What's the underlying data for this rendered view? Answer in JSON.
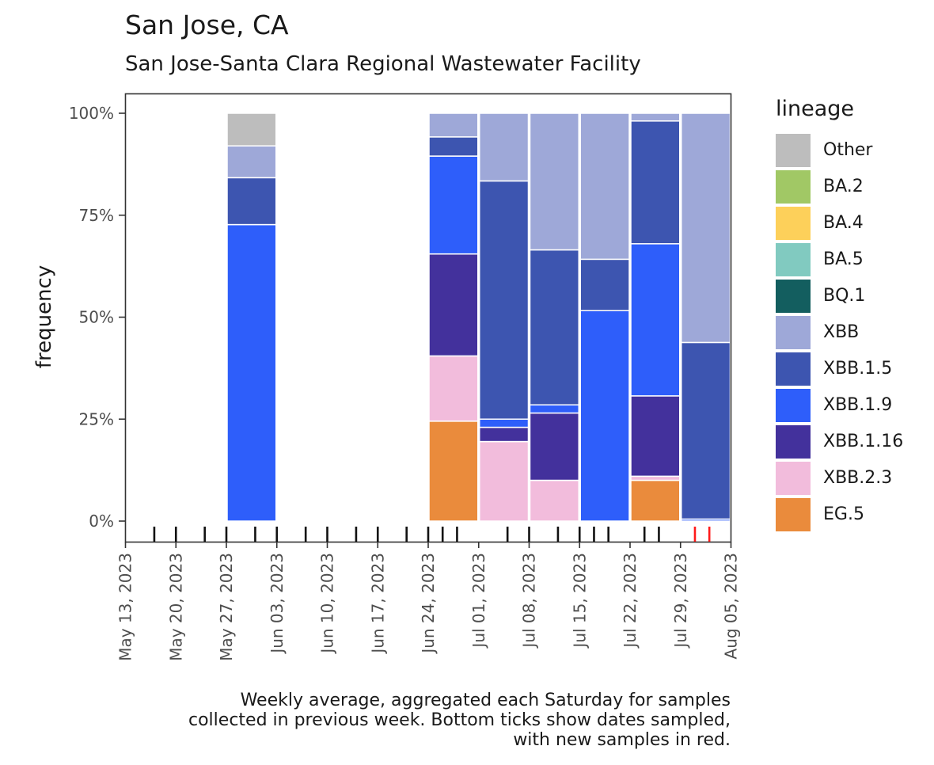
{
  "chart_data": {
    "type": "bar",
    "stacked": true,
    "title": "San Jose, CA",
    "subtitle": "San Jose-Santa Clara Regional Wastewater Facility",
    "ylabel": "frequency",
    "xlabel": "",
    "ylim": [
      0,
      1
    ],
    "y_ticks": [
      {
        "value": 0,
        "label": "0%"
      },
      {
        "value": 0.25,
        "label": "25%"
      },
      {
        "value": 0.5,
        "label": "50%"
      },
      {
        "value": 0.75,
        "label": "75%"
      },
      {
        "value": 1,
        "label": "100%"
      }
    ],
    "x_range_days": [
      0,
      84
    ],
    "x_ticks": [
      {
        "day": 0,
        "label": "May 13, 2023"
      },
      {
        "day": 7,
        "label": "May 20, 2023"
      },
      {
        "day": 14,
        "label": "May 27, 2023"
      },
      {
        "day": 21,
        "label": "Jun 03, 2023"
      },
      {
        "day": 28,
        "label": "Jun 10, 2023"
      },
      {
        "day": 35,
        "label": "Jun 17, 2023"
      },
      {
        "day": 42,
        "label": "Jun 24, 2023"
      },
      {
        "day": 49,
        "label": "Jul 01, 2023"
      },
      {
        "day": 56,
        "label": "Jul 08, 2023"
      },
      {
        "day": 63,
        "label": "Jul 15, 2023"
      },
      {
        "day": 70,
        "label": "Jul 22, 2023"
      },
      {
        "day": 77,
        "label": "Jul 29, 2023"
      },
      {
        "day": 84,
        "label": "Aug 05, 2023"
      }
    ],
    "legend_title": "lineage",
    "legend_position": "right",
    "lineages": [
      {
        "name": "Other",
        "color": "#bdbdbd"
      },
      {
        "name": "BA.2",
        "color": "#a1c865"
      },
      {
        "name": "BA.4",
        "color": "#fdd05a"
      },
      {
        "name": "BA.5",
        "color": "#81cac0"
      },
      {
        "name": "BQ.1",
        "color": "#135e5f"
      },
      {
        "name": "XBB",
        "color": "#9ea8d8"
      },
      {
        "name": "XBB.1.5",
        "color": "#3d55b0"
      },
      {
        "name": "XBB.1.9",
        "color": "#2e5efa"
      },
      {
        "name": "XBB.1.16",
        "color": "#43319c"
      },
      {
        "name": "XBB.2.3",
        "color": "#f2bcdc"
      },
      {
        "name": "EG.5",
        "color": "#ea8b3c"
      }
    ],
    "bars": [
      {
        "week": "May 31, 2023",
        "center_day": 17.5,
        "values": {
          "XBB.1.9": 0.727,
          "XBB.1.5": 0.115,
          "XBB": 0.078,
          "Other": 0.08
        }
      },
      {
        "week": "Jun 28, 2023",
        "center_day": 45.5,
        "values": {
          "EG.5": 0.245,
          "XBB.2.3": 0.16,
          "XBB.1.16": 0.25,
          "XBB.1.9": 0.24,
          "XBB.1.5": 0.047,
          "XBB": 0.058
        }
      },
      {
        "week": "Jul 05, 2023",
        "center_day": 52.5,
        "values": {
          "XBB.2.3": 0.195,
          "XBB.1.16": 0.035,
          "XBB.1.9": 0.02,
          "XBB.1.5": 0.584,
          "XBB": 0.166
        }
      },
      {
        "week": "Jul 12, 2023",
        "center_day": 59.5,
        "values": {
          "XBB.2.3": 0.1,
          "XBB.1.16": 0.165,
          "XBB.1.9": 0.02,
          "XBB.1.5": 0.38,
          "XBB": 0.335
        }
      },
      {
        "week": "Jul 19, 2023",
        "center_day": 66.5,
        "values": {
          "XBB.1.9": 0.516,
          "XBB.1.5": 0.126,
          "XBB": 0.358
        }
      },
      {
        "week": "Jul 26, 2023",
        "center_day": 73.5,
        "values": {
          "EG.5": 0.1,
          "XBB.2.3": 0.01,
          "XBB.1.16": 0.197,
          "XBB.1.9": 0.373,
          "XBB.1.5": 0.301,
          "XBB": 0.019
        }
      },
      {
        "week": "Aug 02, 2023",
        "center_day": 80.5,
        "values": {
          "XBB.1.9": 0.005,
          "XBB.1.5": 0.433,
          "XBB": 0.562
        }
      }
    ],
    "sample_days": [
      4,
      7,
      11,
      14,
      18,
      21,
      25,
      28,
      32,
      35,
      39,
      42,
      44,
      46,
      53,
      56,
      60,
      63,
      65,
      67,
      72,
      74,
      79,
      81
    ],
    "new_sample_days": [
      79,
      81
    ]
  },
  "caption_lines": [
    "Weekly average, aggregated each Saturday for samples",
    "collected in previous week. Bottom ticks show dates sampled,",
    "with new samples in red."
  ]
}
